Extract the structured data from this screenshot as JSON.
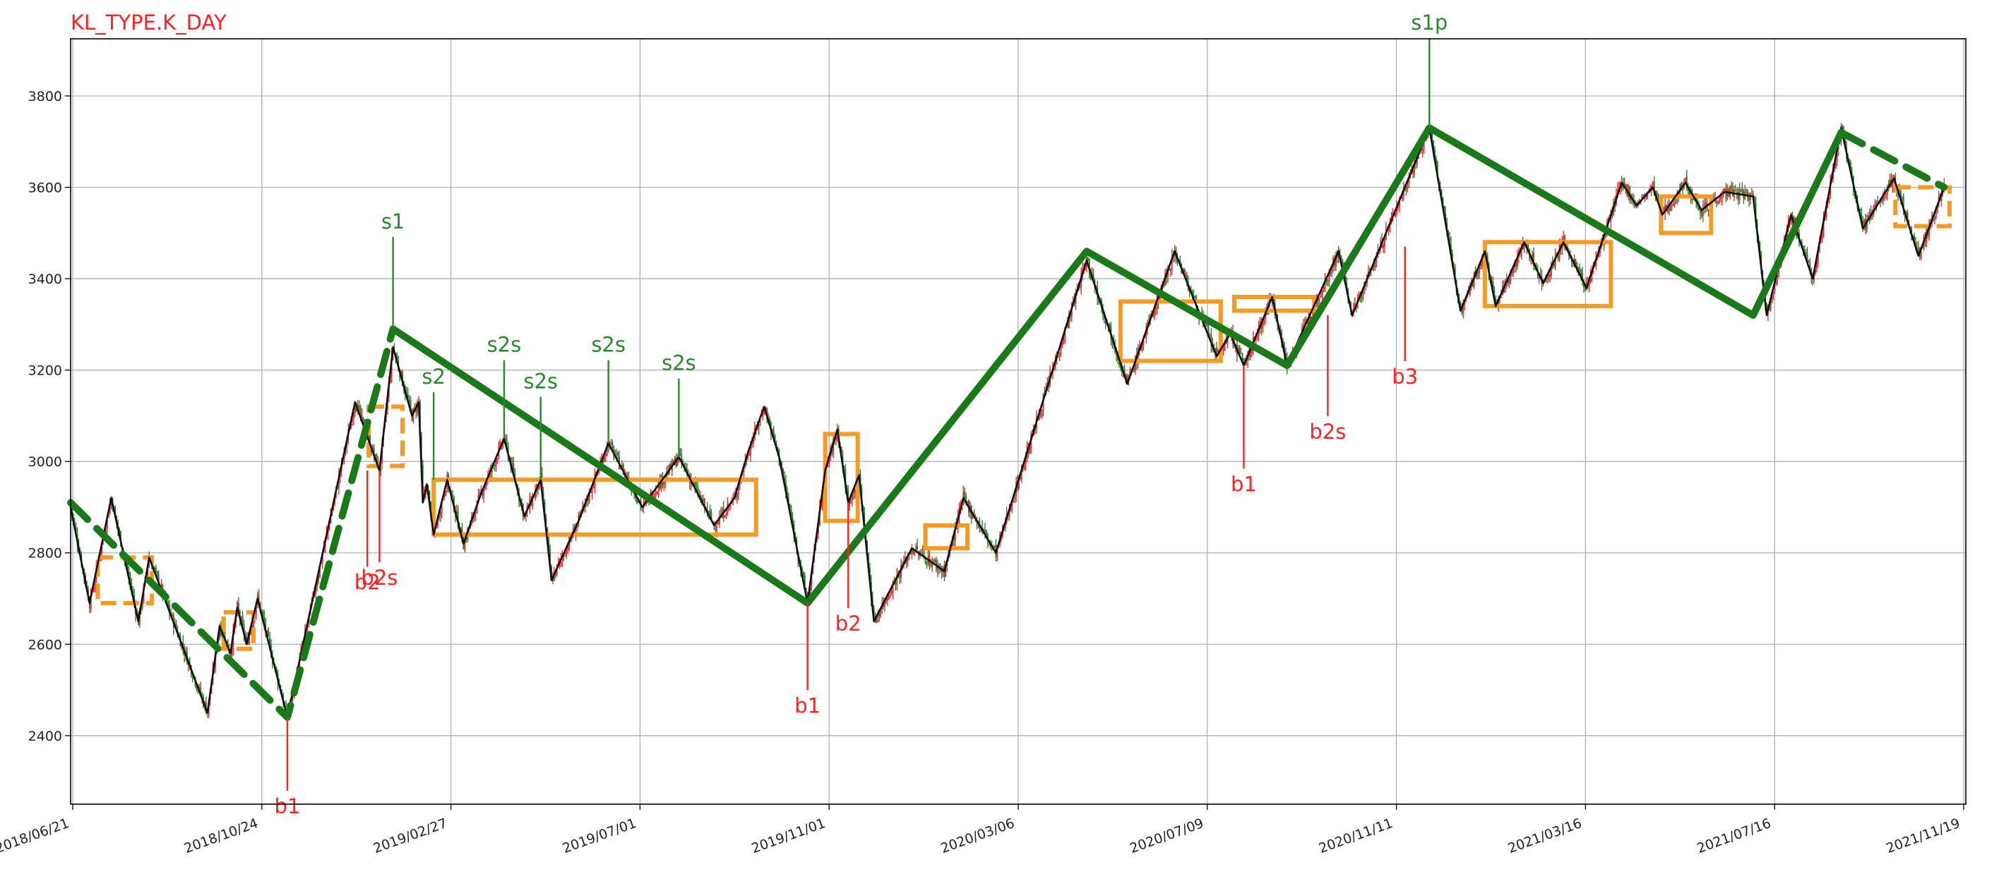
{
  "chart_data": {
    "type": "candlestick",
    "title": "KL_TYPE.K_DAY",
    "grid": true,
    "xlabel": "",
    "ylabel": "",
    "ylim": [
      2250,
      3925
    ],
    "x_ticks": [
      "2018/06/21",
      "2018/10/24",
      "2019/02/27",
      "2019/07/01",
      "2019/11/01",
      "2020/03/06",
      "2020/07/09",
      "2020/11/11",
      "2021/03/16",
      "2021/07/16",
      "2021/11/19"
    ],
    "y_ticks": [
      2400,
      2600,
      2800,
      3000,
      3200,
      3400,
      3600,
      3800
    ],
    "colors": {
      "up": "#e8202a",
      "down": "#1e7a1e",
      "bi": "#111111",
      "seg": "#1a7a1a",
      "zs": "#f59a23",
      "buy": "#ff2020",
      "sell": "#2a8a2a",
      "title": "#ff2020"
    },
    "bi_points": [
      [
        0,
        2900
      ],
      [
        14,
        2690
      ],
      [
        30,
        2920
      ],
      [
        50,
        2650
      ],
      [
        58,
        2790
      ],
      [
        101,
        2450
      ],
      [
        110,
        2640
      ],
      [
        118,
        2580
      ],
      [
        123,
        2680
      ],
      [
        130,
        2600
      ],
      [
        138,
        2700
      ],
      [
        160,
        2440
      ],
      [
        210,
        3130
      ],
      [
        228,
        2980
      ],
      [
        238,
        3250
      ],
      [
        252,
        3100
      ],
      [
        257,
        3130
      ],
      [
        260,
        2910
      ],
      [
        263,
        2950
      ],
      [
        268,
        2840
      ],
      [
        278,
        2960
      ],
      [
        290,
        2820
      ],
      [
        303,
        2930
      ],
      [
        320,
        3050
      ],
      [
        335,
        2880
      ],
      [
        347,
        2960
      ],
      [
        355,
        2740
      ],
      [
        375,
        2870
      ],
      [
        397,
        3040
      ],
      [
        422,
        2900
      ],
      [
        449,
        3010
      ],
      [
        475,
        2860
      ],
      [
        490,
        2920
      ],
      [
        500,
        3020
      ],
      [
        512,
        3120
      ],
      [
        523,
        3010
      ],
      [
        544,
        2690
      ],
      [
        557,
        2980
      ],
      [
        566,
        3070
      ],
      [
        574,
        2910
      ],
      [
        582,
        2970
      ],
      [
        593,
        2650
      ],
      [
        621,
        2810
      ],
      [
        645,
        2760
      ],
      [
        659,
        2920
      ],
      [
        683,
        2800
      ],
      [
        750,
        3440
      ],
      [
        780,
        3170
      ],
      [
        815,
        3460
      ],
      [
        846,
        3230
      ],
      [
        856,
        3280
      ],
      [
        866,
        3210
      ],
      [
        887,
        3360
      ],
      [
        898,
        3210
      ],
      [
        936,
        3460
      ],
      [
        946,
        3320
      ],
      [
        1003,
        3730
      ],
      [
        1026,
        3330
      ],
      [
        1044,
        3460
      ],
      [
        1052,
        3340
      ],
      [
        1073,
        3480
      ],
      [
        1087,
        3390
      ],
      [
        1102,
        3480
      ],
      [
        1119,
        3380
      ],
      [
        1145,
        3610
      ],
      [
        1156,
        3560
      ],
      [
        1168,
        3600
      ],
      [
        1175,
        3540
      ],
      [
        1192,
        3610
      ],
      [
        1204,
        3550
      ],
      [
        1221,
        3590
      ],
      [
        1242,
        3580
      ],
      [
        1252,
        3320
      ],
      [
        1270,
        3540
      ],
      [
        1286,
        3400
      ],
      [
        1307,
        3730
      ],
      [
        1323,
        3510
      ],
      [
        1346,
        3620
      ],
      [
        1364,
        3450
      ],
      [
        1383,
        3600
      ]
    ],
    "segments": [
      {
        "style": "dashed",
        "points": [
          [
            0,
            2910
          ],
          [
            160,
            2440
          ],
          [
            238,
            3290
          ]
        ]
      },
      {
        "style": "solid",
        "points": [
          [
            238,
            3290
          ],
          [
            544,
            2690
          ],
          [
            750,
            3460
          ],
          [
            898,
            3210
          ],
          [
            1003,
            3730
          ],
          [
            1242,
            3320
          ],
          [
            1307,
            3720
          ]
        ]
      },
      {
        "style": "dashed",
        "points": [
          [
            1307,
            3720
          ],
          [
            1383,
            3600
          ]
        ]
      }
    ],
    "zhongshu": [
      {
        "x0": 20,
        "x1": 60,
        "y0": 2690,
        "y1": 2790,
        "style": "dashed"
      },
      {
        "x0": 113,
        "x1": 135,
        "y0": 2590,
        "y1": 2670,
        "style": "dashed"
      },
      {
        "x0": 220,
        "x1": 245,
        "y0": 2990,
        "y1": 3120,
        "style": "dashed"
      },
      {
        "x0": 268,
        "x1": 506,
        "y0": 2840,
        "y1": 2960,
        "style": "solid"
      },
      {
        "x0": 557,
        "x1": 581,
        "y0": 2870,
        "y1": 3060,
        "style": "solid"
      },
      {
        "x0": 631,
        "x1": 662,
        "y0": 2810,
        "y1": 2860,
        "style": "solid"
      },
      {
        "x0": 775,
        "x1": 849,
        "y0": 3220,
        "y1": 3350,
        "style": "solid"
      },
      {
        "x0": 859,
        "x1": 918,
        "y0": 3330,
        "y1": 3360,
        "style": "solid"
      },
      {
        "x0": 1044,
        "x1": 1137,
        "y0": 3340,
        "y1": 3480,
        "style": "solid"
      },
      {
        "x0": 1174,
        "x1": 1211,
        "y0": 3500,
        "y1": 3580,
        "style": "solid"
      },
      {
        "x0": 1347,
        "x1": 1387,
        "y0": 3515,
        "y1": 3600,
        "style": "dashed"
      }
    ],
    "buy_signals": [
      {
        "label": "b1",
        "idx": 160,
        "y_tip": 2440,
        "y_label": 2230
      },
      {
        "label": "b2",
        "idx": 219,
        "y_tip": 2980,
        "y_label": 2720
      },
      {
        "label": "b2s",
        "idx": 228,
        "y_tip": 2980,
        "y_label": 2730
      },
      {
        "label": "b1",
        "idx": 544,
        "y_tip": 2690,
        "y_label": 2450
      },
      {
        "label": "b2",
        "idx": 574,
        "y_tip": 2910,
        "y_label": 2630
      },
      {
        "label": "b1",
        "idx": 866,
        "y_tip": 3210,
        "y_label": 2935
      },
      {
        "label": "b2s",
        "idx": 928,
        "y_tip": 3320,
        "y_label": 3050
      },
      {
        "label": "b3",
        "idx": 985,
        "y_tip": 3470,
        "y_label": 3170
      }
    ],
    "sell_signals": [
      {
        "label": "s1",
        "idx": 238,
        "y_tip": 3290,
        "y_label": 3510
      },
      {
        "label": "s2",
        "idx": 268,
        "y_tip": 2960,
        "y_label": 3170
      },
      {
        "label": "s2s",
        "idx": 320,
        "y_tip": 3050,
        "y_label": 3240
      },
      {
        "label": "s2s",
        "idx": 347,
        "y_tip": 2960,
        "y_label": 3160
      },
      {
        "label": "s2s",
        "idx": 397,
        "y_tip": 3040,
        "y_label": 3240
      },
      {
        "label": "s2s",
        "idx": 449,
        "y_tip": 3010,
        "y_label": 3200
      },
      {
        "label": "s1p",
        "idx": 1003,
        "y_tip": 3730,
        "y_label": 3945
      }
    ]
  }
}
